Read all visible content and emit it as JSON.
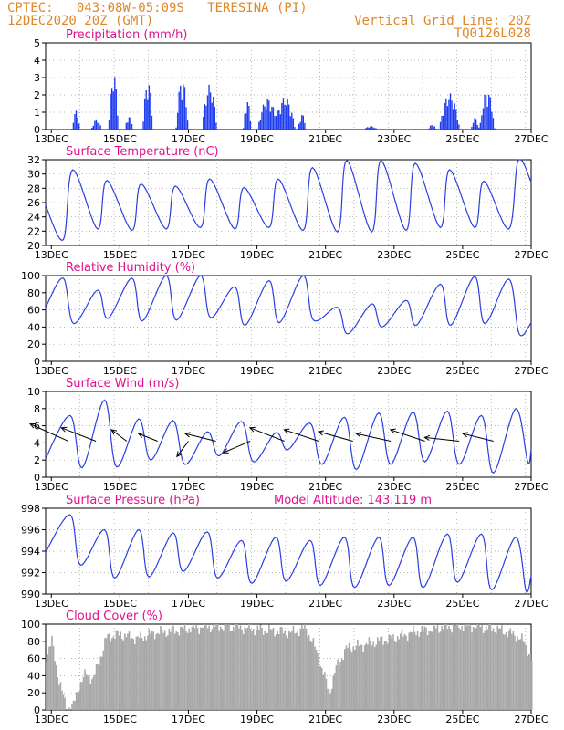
{
  "header": {
    "station": "CPTEC:   043:08W-05:09S   TERESINA (PI)",
    "run": "12DEC2020 20Z (GMT)",
    "grid_note": "Vertical Grid Line: 20Z",
    "model_id": "TQ0126L028"
  },
  "colors": {
    "line": "#2a3fe0",
    "bar": "#1f3df0",
    "cloud": "#a8a8a8",
    "title": "#e0128e",
    "header": "#e0872a",
    "grid": "#9a9a9a"
  },
  "chart_data": [
    {
      "type": "bar",
      "title": "Precipitation (mm/h)",
      "x_ticks": [
        "13DEC",
        "15DEC",
        "17DEC",
        "19DEC",
        "21DEC",
        "23DEC",
        "25DEC",
        "27DEC"
      ],
      "ylim": [
        0,
        5
      ],
      "y_ticks": [
        "0",
        "1",
        "2",
        "3",
        "4",
        "5"
      ],
      "grid": true,
      "x_range_days": [
        12.833,
        27.0
      ],
      "bursts": [
        {
          "center": 13.7,
          "width": 0.12,
          "peak": 1.1
        },
        {
          "center": 14.3,
          "width": 0.15,
          "peak": 0.6
        },
        {
          "center": 14.8,
          "width": 0.15,
          "peak": 3.3
        },
        {
          "center": 15.25,
          "width": 0.12,
          "peak": 0.8
        },
        {
          "center": 15.8,
          "width": 0.15,
          "peak": 2.9
        },
        {
          "center": 16.8,
          "width": 0.18,
          "peak": 3.0
        },
        {
          "center": 17.6,
          "width": 0.22,
          "peak": 2.6
        },
        {
          "center": 18.7,
          "width": 0.12,
          "peak": 1.7
        },
        {
          "center": 19.3,
          "width": 0.3,
          "peak": 1.8
        },
        {
          "center": 19.8,
          "width": 0.3,
          "peak": 1.9
        },
        {
          "center": 20.3,
          "width": 0.12,
          "peak": 0.9
        },
        {
          "center": 22.3,
          "width": 0.2,
          "peak": 0.2
        },
        {
          "center": 24.1,
          "width": 0.12,
          "peak": 0.3
        },
        {
          "center": 24.6,
          "width": 0.3,
          "peak": 2.1
        },
        {
          "center": 25.35,
          "width": 0.12,
          "peak": 0.7
        },
        {
          "center": 25.7,
          "width": 0.22,
          "peak": 2.3
        }
      ]
    },
    {
      "type": "line",
      "title": "Surface Temperature (nC)",
      "x_ticks": [
        "13DEC",
        "15DEC",
        "17DEC",
        "19DEC",
        "21DEC",
        "23DEC",
        "25DEC",
        "27DEC"
      ],
      "ylim": [
        20,
        32
      ],
      "y_ticks": [
        "20",
        "22",
        "24",
        "26",
        "28",
        "30",
        "32"
      ],
      "grid": true,
      "x_range_days": [
        12.833,
        27.0
      ],
      "daily_max": [
        null,
        30.6,
        29.1,
        28.6,
        28.3,
        29.3,
        28.1,
        29.3,
        30.9,
        31.9,
        31.9,
        31.5,
        30.6,
        29.0,
        31.9
      ],
      "daily_min": [
        null,
        20.8,
        22.3,
        22.1,
        22.3,
        22.5,
        22.3,
        22.5,
        22.1,
        21.9,
        21.9,
        22.1,
        22.5,
        22.5,
        22.3
      ],
      "start_value": 25.6,
      "end_value": 28.9
    },
    {
      "type": "line",
      "title": "Relative Humidity (%)",
      "x_ticks": [
        "13DEC",
        "15DEC",
        "17DEC",
        "19DEC",
        "21DEC",
        "23DEC",
        "25DEC",
        "27DEC"
      ],
      "ylim": [
        0,
        100
      ],
      "y_ticks": [
        "0",
        "20",
        "40",
        "60",
        "80",
        "100"
      ],
      "grid": true,
      "x_range_days": [
        12.833,
        27.0
      ],
      "daily_max": [
        null,
        97,
        83,
        97,
        100,
        100,
        87,
        94,
        100,
        63,
        67,
        71,
        90,
        99,
        96
      ],
      "daily_min": [
        null,
        44,
        50,
        47,
        48,
        51,
        42,
        45,
        48,
        32,
        40,
        42,
        42,
        44,
        32
      ],
      "start_value": 63,
      "end_value": 45
    },
    {
      "type": "line",
      "title": "Surface Wind (m/s)",
      "x_ticks": [
        "13DEC",
        "15DEC",
        "17DEC",
        "19DEC",
        "21DEC",
        "23DEC",
        "25DEC",
        "27DEC"
      ],
      "ylim": [
        0,
        10
      ],
      "y_ticks": [
        "0",
        "2",
        "4",
        "6",
        "8",
        "10"
      ],
      "grid": true,
      "x_range_days": [
        12.833,
        27.0
      ],
      "daily_max": [
        null,
        7.2,
        9.0,
        6.8,
        6.6,
        5.3,
        6.5,
        5.2,
        6.3,
        7.0,
        7.5,
        7.6,
        7.7,
        7.2,
        8.0
      ],
      "daily_min": [
        null,
        1.1,
        1.2,
        2.0,
        1.5,
        2.5,
        1.8,
        3.2,
        1.5,
        0.9,
        1.5,
        1.8,
        1.5,
        0.5,
        1.8
      ],
      "start_value": 2.2,
      "end_value": 3.3,
      "arrows_note": "wind direction vectors drawn along the series",
      "arrows": [
        {
          "day": 13.5,
          "dx": -1.0,
          "dy": 0.45
        },
        {
          "day": 14.3,
          "dx": -0.9,
          "dy": 0.35
        },
        {
          "day": 15.2,
          "dx": -0.4,
          "dy": 0.3
        },
        {
          "day": 16.1,
          "dx": -0.5,
          "dy": 0.2
        },
        {
          "day": 17.0,
          "dx": -0.3,
          "dy": -0.4
        },
        {
          "day": 17.8,
          "dx": -0.8,
          "dy": 0.2
        },
        {
          "day": 18.8,
          "dx": -0.7,
          "dy": -0.3
        },
        {
          "day": 19.8,
          "dx": -0.9,
          "dy": 0.35
        },
        {
          "day": 20.8,
          "dx": -0.9,
          "dy": 0.3
        },
        {
          "day": 21.8,
          "dx": -0.9,
          "dy": 0.25
        },
        {
          "day": 22.9,
          "dx": -0.9,
          "dy": 0.2
        },
        {
          "day": 23.9,
          "dx": -0.9,
          "dy": 0.3
        },
        {
          "day": 24.9,
          "dx": -0.9,
          "dy": 0.1
        },
        {
          "day": 25.9,
          "dx": -0.8,
          "dy": 0.2
        }
      ]
    },
    {
      "type": "line",
      "title": "Surface Pressure (hPa)",
      "subtitle": "Model Altitude: 143.119  m",
      "x_ticks": [
        "13DEC",
        "15DEC",
        "17DEC",
        "19DEC",
        "21DEC",
        "23DEC",
        "25DEC",
        "27DEC"
      ],
      "ylim": [
        990,
        998
      ],
      "y_ticks": [
        "990",
        "992",
        "994",
        "996",
        "998"
      ],
      "grid": true,
      "x_range_days": [
        12.833,
        27.0
      ],
      "daily_max": [
        null,
        997.4,
        996.0,
        996.0,
        995.7,
        995.8,
        995.0,
        995.3,
        995.0,
        995.3,
        995.3,
        995.3,
        995.6,
        995.6,
        995.3
      ],
      "daily_min": [
        null,
        992.7,
        991.5,
        991.6,
        992.1,
        991.5,
        991.0,
        991.2,
        990.8,
        990.6,
        990.8,
        990.6,
        991.1,
        990.4,
        990.3
      ],
      "start_value": 993.9,
      "end_value": 991.7
    },
    {
      "type": "area",
      "title": "Cloud Cover (%)",
      "x_ticks": [
        "13DEC",
        "15DEC",
        "17DEC",
        "19DEC",
        "21DEC",
        "23DEC",
        "25DEC",
        "27DEC"
      ],
      "ylim": [
        0,
        100
      ],
      "y_ticks": [
        "0",
        "20",
        "40",
        "60",
        "80",
        "100"
      ],
      "grid": true,
      "x_range_days": [
        12.833,
        27.0
      ],
      "profile": [
        {
          "day": 12.83,
          "value": 62
        },
        {
          "day": 13.0,
          "value": 80
        },
        {
          "day": 13.2,
          "value": 35
        },
        {
          "day": 13.4,
          "value": 5
        },
        {
          "day": 13.6,
          "value": 2
        },
        {
          "day": 13.8,
          "value": 30
        },
        {
          "day": 14.0,
          "value": 42
        },
        {
          "day": 14.2,
          "value": 35
        },
        {
          "day": 14.4,
          "value": 60
        },
        {
          "day": 14.6,
          "value": 85
        },
        {
          "day": 15.0,
          "value": 88
        },
        {
          "day": 15.5,
          "value": 83
        },
        {
          "day": 16.0,
          "value": 90
        },
        {
          "day": 16.5,
          "value": 92
        },
        {
          "day": 17.0,
          "value": 95
        },
        {
          "day": 17.5,
          "value": 97
        },
        {
          "day": 18.0,
          "value": 98
        },
        {
          "day": 18.5,
          "value": 96
        },
        {
          "day": 19.0,
          "value": 94
        },
        {
          "day": 19.5,
          "value": 92
        },
        {
          "day": 20.0,
          "value": 90
        },
        {
          "day": 20.4,
          "value": 96
        },
        {
          "day": 20.7,
          "value": 70
        },
        {
          "day": 20.9,
          "value": 45
        },
        {
          "day": 21.1,
          "value": 20
        },
        {
          "day": 21.3,
          "value": 50
        },
        {
          "day": 21.6,
          "value": 72
        },
        {
          "day": 22.0,
          "value": 75
        },
        {
          "day": 22.5,
          "value": 80
        },
        {
          "day": 23.0,
          "value": 84
        },
        {
          "day": 23.5,
          "value": 90
        },
        {
          "day": 24.0,
          "value": 94
        },
        {
          "day": 24.5,
          "value": 97
        },
        {
          "day": 25.0,
          "value": 98
        },
        {
          "day": 25.5,
          "value": 97
        },
        {
          "day": 26.0,
          "value": 94
        },
        {
          "day": 26.5,
          "value": 88
        },
        {
          "day": 26.8,
          "value": 78
        },
        {
          "day": 27.0,
          "value": 58
        }
      ]
    }
  ]
}
